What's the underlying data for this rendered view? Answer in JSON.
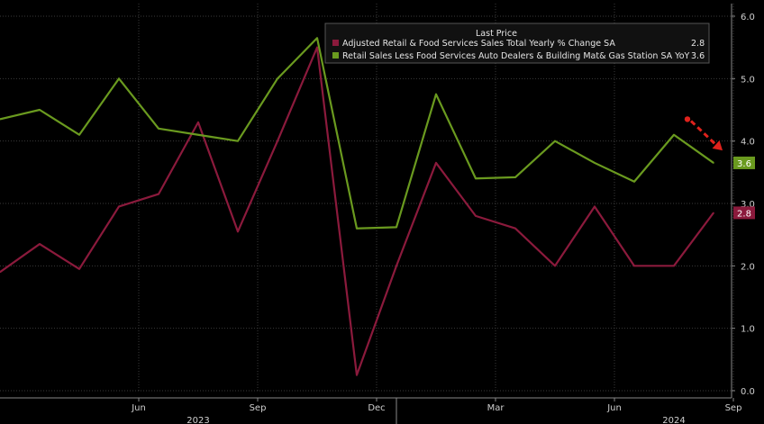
{
  "chart_data": {
    "type": "line",
    "legend": {
      "header": "Last Price",
      "placement": "top-right"
    },
    "x": [
      "2023-04",
      "2023-05",
      "2023-06",
      "2023-07",
      "2023-08",
      "2023-09",
      "2023-10",
      "2023-11",
      "2023-12",
      "2024-01",
      "2024-02",
      "2024-03",
      "2024-04",
      "2024-05",
      "2024-06",
      "2024-07",
      "2024-08",
      "2024-09",
      "2024-10"
    ],
    "x_ticks": [
      {
        "date": "2023-06",
        "label": "Jun"
      },
      {
        "date": "2023-09",
        "label": "Sep"
      },
      {
        "date": "2023-12",
        "label": "Dec"
      },
      {
        "date": "2024-03",
        "label": "Mar"
      },
      {
        "date": "2024-06",
        "label": "Jun"
      },
      {
        "date": "2024-09",
        "label": "Sep"
      }
    ],
    "year_labels": [
      {
        "date": "2023-08",
        "label": "2023"
      },
      {
        "date": "2024-08",
        "label": "2024"
      }
    ],
    "ylim": [
      0.0,
      6.0
    ],
    "y_ticks": [
      "0.0",
      "1.0",
      "2.0",
      "3.0",
      "4.0",
      "5.0",
      "6.0"
    ],
    "grid": true,
    "series": [
      {
        "name": "Adjusted Retail & Food Services Sales Total Yearly % Change SA",
        "last_value": "2.8",
        "color": "#8b1a3c",
        "values": [
          1.9,
          2.35,
          1.95,
          2.95,
          3.15,
          4.3,
          2.55,
          4.0,
          5.5,
          0.25,
          2.0,
          3.65,
          2.8,
          2.6,
          2.0,
          2.95,
          2.0,
          2.0,
          2.85
        ]
      },
      {
        "name": "Retail Sales Less Food Services Auto Dealers & Building Mat& Gas Station SA YoY",
        "last_value": "3.6",
        "color": "#6a9a1f",
        "values": [
          4.35,
          4.5,
          4.1,
          5.0,
          4.2,
          4.1,
          4.0,
          5.0,
          5.65,
          2.6,
          2.62,
          4.75,
          3.4,
          3.42,
          4.0,
          3.65,
          3.35,
          4.1,
          3.65
        ]
      }
    ],
    "annotation": {
      "type": "dashed-arrow",
      "color": "#e0221c",
      "from": {
        "date": "2024-09",
        "value": 4.35
      },
      "to": {
        "date": "2024-10",
        "value": 3.85
      }
    }
  }
}
